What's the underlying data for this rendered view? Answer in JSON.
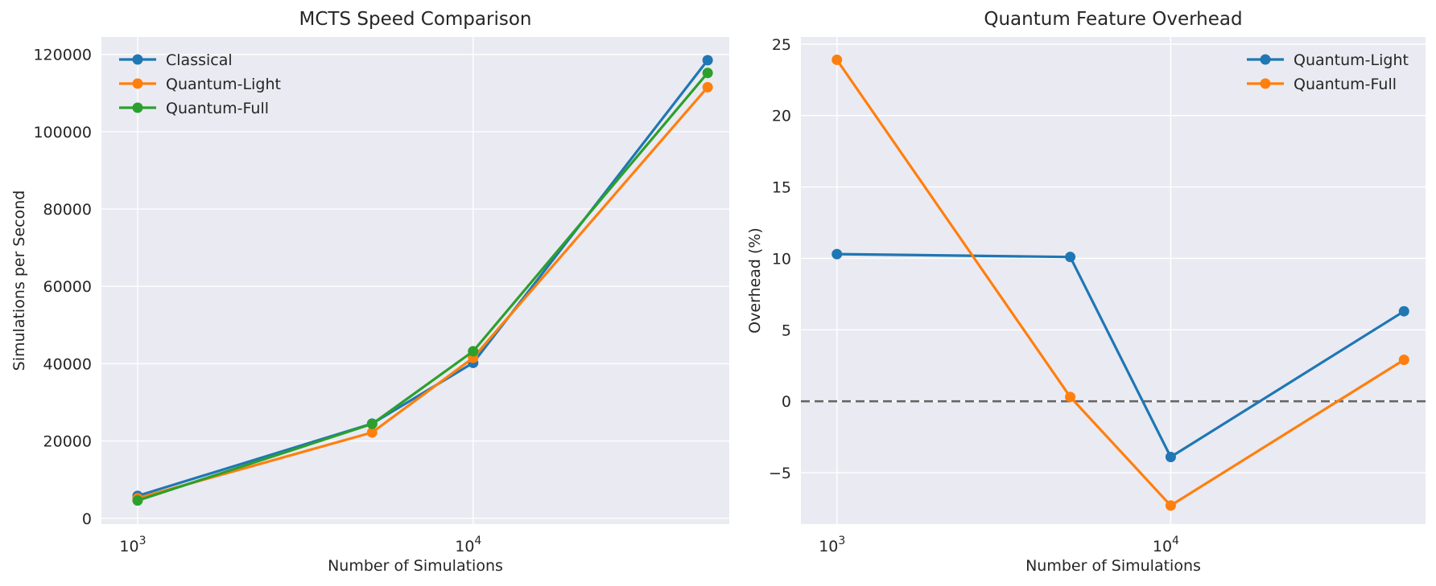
{
  "chart_data": [
    {
      "type": "line",
      "title": "MCTS Speed Comparison",
      "xlabel": "Number of Simulations",
      "ylabel": "Simulations per Second",
      "xscale": "log",
      "x": [
        1000,
        5000,
        10000,
        50000
      ],
      "xticks": [
        {
          "value": 1000,
          "label": "10",
          "exp": "3"
        },
        {
          "value": 10000,
          "label": "10",
          "exp": "4"
        }
      ],
      "xlim": [
        780,
        58000
      ],
      "ylim": [
        -1500,
        124500
      ],
      "yticks": [
        0,
        20000,
        40000,
        60000,
        80000,
        100000,
        120000
      ],
      "grid": true,
      "legend_position": "top-left",
      "series": [
        {
          "name": "Classical",
          "color": "#1f77b4",
          "values": [
            5800,
            24500,
            40200,
            118500
          ]
        },
        {
          "name": "Quantum-Light",
          "color": "#ff7f0e",
          "values": [
            5200,
            22200,
            41500,
            111500
          ]
        },
        {
          "name": "Quantum-Full",
          "color": "#2ca02c",
          "values": [
            4600,
            24400,
            43200,
            115200
          ]
        }
      ]
    },
    {
      "type": "line",
      "title": "Quantum Feature Overhead",
      "xlabel": "Number of Simulations",
      "ylabel": "Overhead (%)",
      "xscale": "log",
      "x": [
        1000,
        5000,
        10000,
        50000
      ],
      "xticks": [
        {
          "value": 1000,
          "label": "10",
          "exp": "3"
        },
        {
          "value": 10000,
          "label": "10",
          "exp": "4"
        }
      ],
      "xlim": [
        780,
        58000
      ],
      "ylim": [
        -8.6,
        25.5
      ],
      "yticks": [
        {
          "value": -5,
          "label": "−5"
        },
        {
          "value": 0,
          "label": "0"
        },
        {
          "value": 5,
          "label": "5"
        },
        {
          "value": 10,
          "label": "10"
        },
        {
          "value": 15,
          "label": "15"
        },
        {
          "value": 20,
          "label": "20"
        },
        {
          "value": 25,
          "label": "25"
        }
      ],
      "grid": true,
      "legend_position": "top-right",
      "reference_line": {
        "y": 0,
        "style": "dashed",
        "color": "#666666"
      },
      "series": [
        {
          "name": "Quantum-Light",
          "color": "#1f77b4",
          "values": [
            10.3,
            10.1,
            -3.9,
            6.3
          ]
        },
        {
          "name": "Quantum-Full",
          "color": "#ff7f0e",
          "values": [
            23.9,
            0.3,
            -7.3,
            2.9
          ]
        }
      ]
    }
  ]
}
